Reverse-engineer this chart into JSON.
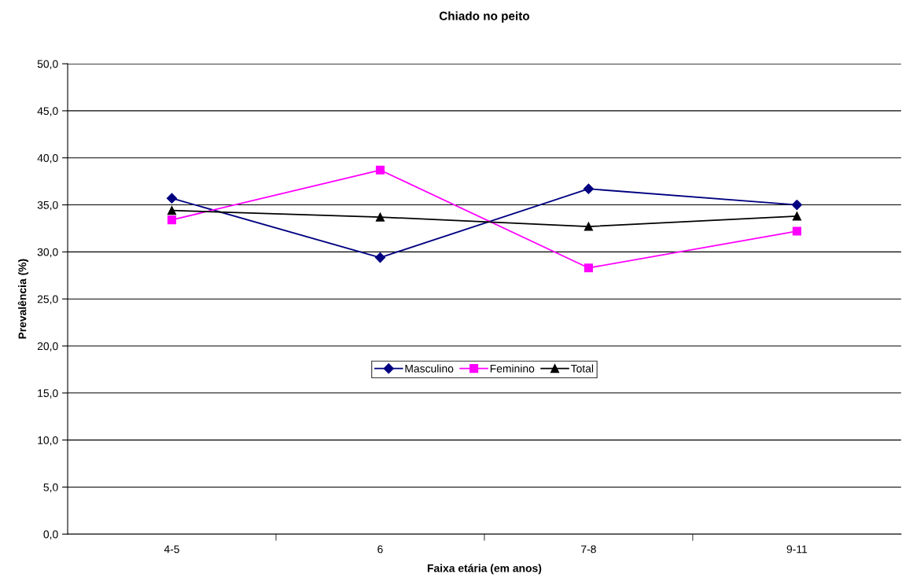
{
  "chart_data": {
    "type": "line",
    "title": "Chiado no peito",
    "xlabel": "Faixa etária (em anos)",
    "ylabel": "Prevalência (%)",
    "categories": [
      "4-5",
      "6",
      "7-8",
      "9-11"
    ],
    "series": [
      {
        "name": "Masculino",
        "color": "#000080",
        "marker": "diamond",
        "values": [
          35.7,
          29.4,
          36.7,
          35.0
        ]
      },
      {
        "name": "Feminino",
        "color": "#ff00ff",
        "marker": "square",
        "values": [
          33.4,
          38.7,
          28.3,
          32.2
        ]
      },
      {
        "name": "Total",
        "color": "#000000",
        "marker": "triangle",
        "values": [
          34.4,
          33.7,
          32.7,
          33.8
        ]
      }
    ],
    "ylim": [
      0,
      50
    ],
    "yticks": [
      {
        "value": 0,
        "label": "0,0"
      },
      {
        "value": 5,
        "label": "5,0"
      },
      {
        "value": 10,
        "label": "10,0"
      },
      {
        "value": 15,
        "label": "15,0"
      },
      {
        "value": 20,
        "label": "20,0"
      },
      {
        "value": 25,
        "label": "25,0"
      },
      {
        "value": 30,
        "label": "30,0"
      },
      {
        "value": 35,
        "label": "35,0"
      },
      {
        "value": 40,
        "label": "40,0"
      },
      {
        "value": 45,
        "label": "45,0"
      },
      {
        "value": 50,
        "label": "50,0"
      }
    ],
    "grid": "y",
    "legend": "center",
    "line_style": "solid"
  }
}
